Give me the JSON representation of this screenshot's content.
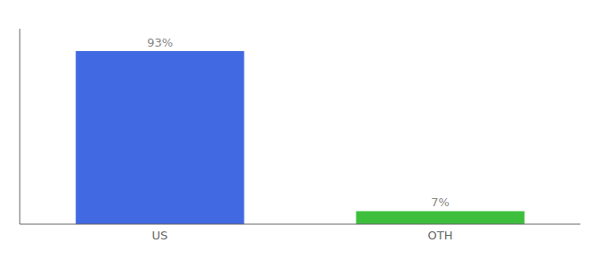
{
  "chart_data": {
    "type": "bar",
    "categories": [
      "US",
      "OTH"
    ],
    "values": [
      93,
      7
    ],
    "value_labels": [
      "93%",
      "7%"
    ],
    "colors": [
      "#4169e1",
      "#3dbf3d"
    ],
    "ylim": [
      0,
      105
    ],
    "data_labels": true,
    "tick_labels": "x",
    "grid": false
  }
}
